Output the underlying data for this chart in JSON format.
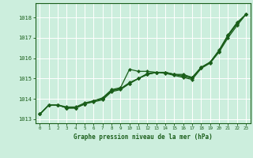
{
  "title": "Graphe pression niveau de la mer (hPa)",
  "bg_color": "#cceedd",
  "grid_color": "#aaddcc",
  "line_color": "#1a5e1a",
  "marker_color": "#1a5e1a",
  "xlim": [
    -0.5,
    23.5
  ],
  "ylim": [
    1012.8,
    1018.7
  ],
  "yticks": [
    1013,
    1014,
    1015,
    1016,
    1017,
    1018
  ],
  "xticks": [
    0,
    1,
    2,
    3,
    4,
    5,
    6,
    7,
    8,
    9,
    10,
    11,
    12,
    13,
    14,
    15,
    16,
    17,
    18,
    19,
    20,
    21,
    22,
    23
  ],
  "series": [
    [
      1013.25,
      1013.7,
      1013.7,
      1013.6,
      1013.6,
      1013.8,
      1013.9,
      1014.05,
      1014.45,
      1014.55,
      1015.45,
      1015.35,
      1015.35,
      1015.3,
      1015.3,
      1015.2,
      1015.2,
      1015.05,
      1015.55,
      1015.8,
      1016.4,
      1017.15,
      1017.75,
      1018.15
    ],
    [
      1013.25,
      1013.7,
      1013.7,
      1013.55,
      1013.55,
      1013.75,
      1013.9,
      1014.0,
      1014.4,
      1014.5,
      1014.8,
      1015.0,
      1015.2,
      1015.3,
      1015.3,
      1015.2,
      1015.15,
      1015.05,
      1015.55,
      1015.8,
      1016.35,
      1017.1,
      1017.7,
      1018.15
    ],
    [
      1013.25,
      1013.7,
      1013.7,
      1013.55,
      1013.55,
      1013.75,
      1013.9,
      1014.0,
      1014.4,
      1014.5,
      1014.75,
      1015.0,
      1015.2,
      1015.3,
      1015.3,
      1015.2,
      1015.1,
      1015.0,
      1015.5,
      1015.8,
      1016.35,
      1017.1,
      1017.7,
      1018.15
    ],
    [
      1013.25,
      1013.7,
      1013.7,
      1013.55,
      1013.55,
      1013.75,
      1013.85,
      1013.95,
      1014.35,
      1014.45,
      1014.75,
      1015.0,
      1015.25,
      1015.3,
      1015.25,
      1015.15,
      1015.05,
      1014.95,
      1015.5,
      1015.75,
      1016.3,
      1017.0,
      1017.6,
      1018.15
    ]
  ]
}
